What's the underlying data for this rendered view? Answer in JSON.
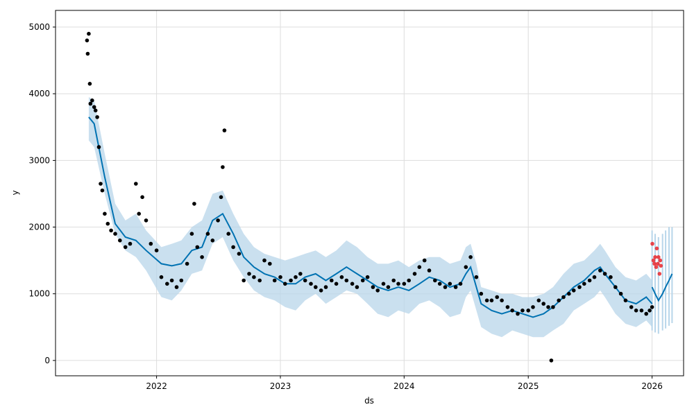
{
  "chart_data": {
    "type": "line",
    "title": "",
    "xlabel": "ds",
    "ylabel": "y",
    "x_range": [
      "2021-03-09",
      "2026-04-04"
    ],
    "ylim": [
      -230,
      5250
    ],
    "x_ticks": [
      "2022-01-01",
      "2023-01-01",
      "2024-01-01",
      "2025-01-01",
      "2026-01-01"
    ],
    "x_tick_labels": [
      "2022",
      "2023",
      "2024",
      "2025",
      "2026"
    ],
    "y_ticks": [
      0,
      1000,
      2000,
      3000,
      4000,
      5000
    ],
    "y_tick_labels": [
      "0",
      "1000",
      "2000",
      "3000",
      "4000",
      "5000"
    ],
    "grid": true,
    "legend": "none",
    "colors": {
      "observed": "#000000",
      "forecast_line": "#0072b2",
      "uncertainty_band": "#b8d6ea",
      "highlight": "#e8262b",
      "grid": "#dddddd"
    },
    "series": [
      {
        "role": "uncertainty-band",
        "x": [
          "2021-06-15",
          "2021-07-01",
          "2021-08-01",
          "2021-09-01",
          "2021-10-01",
          "2021-11-01",
          "2021-12-01",
          "2022-01-15",
          "2022-02-15",
          "2022-03-15",
          "2022-04-15",
          "2022-05-15",
          "2022-06-15",
          "2022-07-15",
          "2022-08-15",
          "2022-09-15",
          "2022-10-15",
          "2022-11-15",
          "2022-12-15",
          "2023-01-15",
          "2023-02-15",
          "2023-03-15",
          "2023-04-15",
          "2023-05-15",
          "2023-06-15",
          "2023-07-15",
          "2023-08-15",
          "2023-09-15",
          "2023-10-15",
          "2023-11-15",
          "2023-12-15",
          "2024-01-15",
          "2024-02-15",
          "2024-03-15",
          "2024-04-15",
          "2024-05-15",
          "2024-06-15",
          "2024-07-01",
          "2024-07-15",
          "2024-08-01",
          "2024-08-15",
          "2024-09-15",
          "2024-10-15",
          "2024-11-15",
          "2024-12-15",
          "2025-01-15",
          "2025-02-15",
          "2025-03-15",
          "2025-04-15",
          "2025-05-15",
          "2025-06-15",
          "2025-07-15",
          "2025-08-01",
          "2025-08-15",
          "2025-09-15",
          "2025-10-15",
          "2025-11-15",
          "2025-12-15",
          "2026-01-01"
        ],
        "upper": [
          3950,
          3900,
          3100,
          2350,
          2100,
          2200,
          1950,
          1700,
          1750,
          1800,
          2000,
          2100,
          2500,
          2550,
          2200,
          1900,
          1700,
          1600,
          1550,
          1500,
          1550,
          1600,
          1650,
          1550,
          1650,
          1800,
          1700,
          1550,
          1450,
          1450,
          1500,
          1400,
          1500,
          1550,
          1550,
          1450,
          1500,
          1700,
          1750,
          1450,
          1100,
          1050,
          1000,
          1000,
          950,
          950,
          1000,
          1100,
          1300,
          1450,
          1500,
          1650,
          1750,
          1650,
          1400,
          1250,
          1200,
          1300,
          1200
        ],
        "lower": [
          3300,
          3200,
          2500,
          1900,
          1650,
          1550,
          1350,
          950,
          900,
          1050,
          1300,
          1350,
          1750,
          1850,
          1500,
          1250,
          1050,
          950,
          900,
          800,
          750,
          900,
          1000,
          850,
          950,
          1050,
          1000,
          850,
          700,
          650,
          750,
          700,
          850,
          900,
          800,
          650,
          700,
          950,
          1050,
          750,
          500,
          400,
          350,
          450,
          400,
          350,
          350,
          450,
          550,
          750,
          850,
          950,
          1050,
          950,
          700,
          550,
          500,
          600,
          500
        ]
      },
      {
        "role": "trend-line",
        "x": [
          "2021-06-15",
          "2021-07-01",
          "2021-08-01",
          "2021-09-01",
          "2021-10-01",
          "2021-11-01",
          "2021-12-01",
          "2022-01-15",
          "2022-02-15",
          "2022-03-15",
          "2022-04-15",
          "2022-05-15",
          "2022-06-15",
          "2022-07-15",
          "2022-08-15",
          "2022-09-15",
          "2022-10-15",
          "2022-11-15",
          "2022-12-15",
          "2023-01-15",
          "2023-02-15",
          "2023-03-15",
          "2023-04-15",
          "2023-05-15",
          "2023-06-15",
          "2023-07-15",
          "2023-08-15",
          "2023-09-15",
          "2023-10-15",
          "2023-11-15",
          "2023-12-15",
          "2024-01-15",
          "2024-02-15",
          "2024-03-15",
          "2024-04-15",
          "2024-05-15",
          "2024-06-15",
          "2024-07-01",
          "2024-07-15",
          "2024-08-01",
          "2024-08-15",
          "2024-09-15",
          "2024-10-15",
          "2024-11-15",
          "2024-12-15",
          "2025-01-15",
          "2025-02-15",
          "2025-03-15",
          "2025-04-15",
          "2025-05-15",
          "2025-06-15",
          "2025-07-15",
          "2025-08-01",
          "2025-08-15",
          "2025-09-15",
          "2025-10-15",
          "2025-11-15",
          "2025-12-15",
          "2026-01-01"
        ],
        "y": [
          3650,
          3550,
          2750,
          2050,
          1850,
          1800,
          1650,
          1450,
          1420,
          1450,
          1650,
          1700,
          2100,
          2200,
          1900,
          1550,
          1400,
          1300,
          1250,
          1150,
          1150,
          1250,
          1300,
          1200,
          1300,
          1400,
          1300,
          1200,
          1100,
          1050,
          1100,
          1050,
          1150,
          1250,
          1200,
          1100,
          1150,
          1300,
          1400,
          1100,
          850,
          750,
          700,
          750,
          700,
          650,
          700,
          800,
          950,
          1100,
          1200,
          1350,
          1400,
          1300,
          1100,
          900,
          850,
          950,
          850
        ]
      },
      {
        "role": "forecast-range",
        "x": [
          "2026-01-01",
          "2026-01-10",
          "2026-01-20",
          "2026-02-01",
          "2026-02-10",
          "2026-02-20",
          "2026-03-01"
        ],
        "upper": [
          1950,
          1900,
          1850,
          1900,
          1950,
          2000,
          2000
        ],
        "lower": [
          450,
          420,
          400,
          450,
          480,
          520,
          560
        ],
        "center": [
          1100,
          1000,
          900,
          1000,
          1100,
          1200,
          1300
        ]
      },
      {
        "role": "highlighted-points",
        "x": [
          "2026-01-02",
          "2026-01-05",
          "2026-01-08",
          "2026-01-10",
          "2026-01-13",
          "2026-01-15",
          "2026-01-18",
          "2026-01-20",
          "2026-01-23",
          "2026-01-25",
          "2026-01-27"
        ],
        "y": [
          1750,
          1500,
          1450,
          1550,
          1400,
          1680,
          1450,
          1550,
          1300,
          1500,
          1420
        ]
      },
      {
        "role": "observed-points",
        "x": [
          "2021-06-10",
          "2021-06-12",
          "2021-06-15",
          "2021-06-18",
          "2021-06-20",
          "2021-06-25",
          "2021-07-01",
          "2021-07-05",
          "2021-07-10",
          "2021-07-15",
          "2021-07-20",
          "2021-07-25",
          "2021-08-01",
          "2021-08-10",
          "2021-08-20",
          "2021-09-01",
          "2021-09-15",
          "2021-10-01",
          "2021-10-15",
          "2021-11-01",
          "2021-11-10",
          "2021-11-20",
          "2021-12-01",
          "2021-12-15",
          "2022-01-01",
          "2022-01-15",
          "2022-02-01",
          "2022-02-15",
          "2022-03-01",
          "2022-03-15",
          "2022-04-01",
          "2022-04-15",
          "2022-04-22",
          "2022-05-01",
          "2022-05-15",
          "2022-06-01",
          "2022-06-15",
          "2022-07-01",
          "2022-07-10",
          "2022-07-15",
          "2022-07-20",
          "2022-08-01",
          "2022-08-15",
          "2022-09-01",
          "2022-09-15",
          "2022-10-01",
          "2022-10-15",
          "2022-11-01",
          "2022-11-15",
          "2022-12-01",
          "2022-12-15",
          "2023-01-01",
          "2023-01-15",
          "2023-02-01",
          "2023-02-15",
          "2023-03-01",
          "2023-03-15",
          "2023-04-01",
          "2023-04-15",
          "2023-05-01",
          "2023-05-15",
          "2023-06-01",
          "2023-06-15",
          "2023-07-01",
          "2023-07-15",
          "2023-08-01",
          "2023-08-15",
          "2023-09-01",
          "2023-09-15",
          "2023-10-01",
          "2023-10-15",
          "2023-11-01",
          "2023-11-15",
          "2023-12-01",
          "2023-12-15",
          "2024-01-01",
          "2024-01-15",
          "2024-02-01",
          "2024-02-15",
          "2024-03-01",
          "2024-03-15",
          "2024-04-01",
          "2024-04-15",
          "2024-05-01",
          "2024-05-15",
          "2024-06-01",
          "2024-06-15",
          "2024-07-01",
          "2024-07-15",
          "2024-08-01",
          "2024-08-15",
          "2024-09-01",
          "2024-09-15",
          "2024-10-01",
          "2024-10-15",
          "2024-11-01",
          "2024-11-15",
          "2024-12-01",
          "2024-12-15",
          "2025-01-01",
          "2025-01-15",
          "2025-02-01",
          "2025-02-15",
          "2025-03-01",
          "2025-03-10",
          "2025-03-15",
          "2025-04-01",
          "2025-04-15",
          "2025-05-01",
          "2025-05-15",
          "2025-06-01",
          "2025-06-15",
          "2025-07-01",
          "2025-07-15",
          "2025-08-01",
          "2025-08-15",
          "2025-09-01",
          "2025-09-15",
          "2025-10-01",
          "2025-10-15",
          "2025-11-01",
          "2025-11-15",
          "2025-12-01",
          "2025-12-15",
          "2025-12-25",
          "2026-01-01"
        ],
        "y": [
          4800,
          4600,
          4900,
          4150,
          3850,
          3900,
          3800,
          3750,
          3650,
          3200,
          2650,
          2550,
          2200,
          2050,
          1950,
          1900,
          1800,
          1700,
          1750,
          2650,
          2200,
          2450,
          2100,
          1750,
          1650,
          1250,
          1150,
          1200,
          1100,
          1200,
          1450,
          1900,
          2350,
          1700,
          1550,
          1900,
          1800,
          2100,
          2450,
          2900,
          3450,
          1900,
          1700,
          1600,
          1200,
          1300,
          1250,
          1200,
          1500,
          1450,
          1200,
          1250,
          1150,
          1200,
          1250,
          1300,
          1200,
          1150,
          1100,
          1050,
          1100,
          1200,
          1150,
          1250,
          1200,
          1150,
          1100,
          1200,
          1250,
          1100,
          1050,
          1150,
          1100,
          1200,
          1150,
          1150,
          1200,
          1300,
          1400,
          1500,
          1350,
          1200,
          1150,
          1100,
          1150,
          1100,
          1150,
          1400,
          1550,
          1250,
          1000,
          900,
          900,
          950,
          900,
          800,
          750,
          700,
          750,
          750,
          800,
          900,
          850,
          800,
          0,
          800,
          900,
          950,
          1000,
          1050,
          1100,
          1150,
          1200,
          1250,
          1350,
          1300,
          1250,
          1100,
          1000,
          900,
          800,
          750,
          750,
          700,
          750,
          800
        ]
      }
    ]
  }
}
